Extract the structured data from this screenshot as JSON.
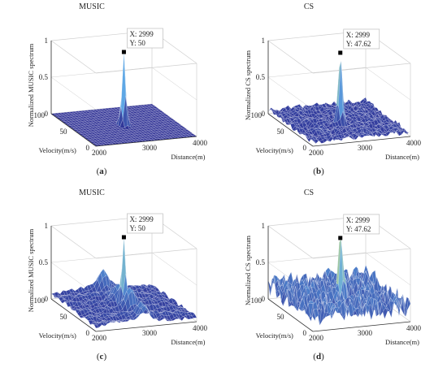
{
  "chart_data": [
    {
      "type": "surface",
      "panel_label": "a",
      "title": "MUSIC",
      "zlabel": "Normalized MUSIC spectrum",
      "xlabel": "Distance(m)",
      "ylabel": "Velocity(m/s)",
      "x_ticks": [
        "2000",
        "3000",
        "4000"
      ],
      "y_ticks": [
        "0",
        "50",
        "100"
      ],
      "z_ticks": [
        "0",
        "0.5",
        "1"
      ],
      "xlim": [
        2000,
        4000
      ],
      "ylim": [
        0,
        100
      ],
      "zlim": [
        0,
        1
      ],
      "peak": {
        "x": 2999,
        "y": 50,
        "z": 1
      },
      "datatip": {
        "x_text": "X: 2999",
        "y_text": "Y: 50"
      },
      "floor_level": 0,
      "noise_level": 0.0,
      "ridge_level": 0.0
    },
    {
      "type": "surface",
      "panel_label": "b",
      "title": "CS",
      "zlabel": "Normalized CS spectrum",
      "xlabel": "Distance(m)",
      "ylabel": "Velocity(m/s)",
      "x_ticks": [
        "2000",
        "3000",
        "4000"
      ],
      "y_ticks": [
        "0",
        "50",
        "100"
      ],
      "z_ticks": [
        "0",
        "0.5",
        "1"
      ],
      "xlim": [
        2000,
        4000
      ],
      "ylim": [
        0,
        100
      ],
      "zlim": [
        0,
        1
      ],
      "peak": {
        "x": 2999,
        "y": 47.62,
        "z": 1
      },
      "datatip": {
        "x_text": "X: 2999",
        "y_text": "Y: 47.62"
      },
      "floor_level": 0.02,
      "noise_level": 0.07,
      "ridge_level": 0.0
    },
    {
      "type": "surface",
      "panel_label": "c",
      "title": "MUSIC",
      "zlabel": "Normalized MUSIC spectrum",
      "xlabel": "Distance(m)",
      "ylabel": "Velocity(m/s)",
      "x_ticks": [
        "2000",
        "3000",
        "4000"
      ],
      "y_ticks": [
        "0",
        "50",
        "100"
      ],
      "z_ticks": [
        "0",
        "0.5",
        "1"
      ],
      "xlim": [
        2000,
        4000
      ],
      "ylim": [
        0,
        100
      ],
      "zlim": [
        0,
        1
      ],
      "peak": {
        "x": 2999,
        "y": 50,
        "z": 1
      },
      "datatip": {
        "x_text": "X: 2999",
        "y_text": "Y: 50"
      },
      "floor_level": 0.03,
      "noise_level": 0.05,
      "ridge_level": 0.22
    },
    {
      "type": "surface",
      "panel_label": "d",
      "title": "CS",
      "zlabel": "Normalized CS spectrum",
      "xlabel": "Distance(m)",
      "ylabel": "Velocity(m/s)",
      "x_ticks": [
        "2000",
        "3000",
        "4000"
      ],
      "y_ticks": [
        "0",
        "50",
        "100"
      ],
      "z_ticks": [
        "0",
        "0.5",
        "1"
      ],
      "xlim": [
        2000,
        4000
      ],
      "ylim": [
        0,
        100
      ],
      "zlim": [
        0,
        1
      ],
      "peak": {
        "x": 2999,
        "y": 47.62,
        "z": 1
      },
      "datatip": {
        "x_text": "X: 2999",
        "y_text": "Y: 47.62"
      },
      "floor_level": 0.05,
      "noise_level": 0.3,
      "ridge_level": 0.0
    }
  ],
  "colors": {
    "surface_low": "#2d2f94",
    "surface_mid": "#5fa9e6",
    "surface_high": "#f5ef3f",
    "mesh_line": "#ffffff",
    "axis_line": "#333333",
    "grid_line": "#cfcfcf"
  }
}
